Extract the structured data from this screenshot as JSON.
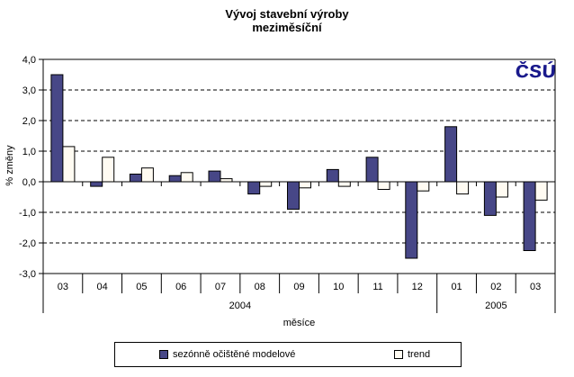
{
  "title": {
    "line1": "Vývoj stavební výroby",
    "line2": "meziměsíční"
  },
  "logo": {
    "text": "ČSÚ",
    "color": "#1a1a8c"
  },
  "chart_data": {
    "type": "bar",
    "title": "Vývoj stavební výroby meziměsíční",
    "xlabel": "měsíce",
    "ylabel": "% změny",
    "ylim": [
      -3.0,
      4.0
    ],
    "ytick_step": 1.0,
    "ytick_labels": [
      "4,0",
      "3,0",
      "2,0",
      "1,0",
      "0,0",
      "-1,0",
      "-2,0",
      "-3,0"
    ],
    "grid": "horizontal-dashed-black",
    "legend_position": "bottom",
    "categories": [
      "03",
      "04",
      "05",
      "06",
      "07",
      "08",
      "09",
      "10",
      "11",
      "12",
      "01",
      "02",
      "03"
    ],
    "year_groups": [
      {
        "label": "2004",
        "months": 10
      },
      {
        "label": "2005",
        "months": 3
      }
    ],
    "series": [
      {
        "name": "sezónně očištěné modelové",
        "color": "#474787",
        "values": [
          3.5,
          -0.15,
          0.25,
          0.2,
          0.35,
          -0.4,
          -0.9,
          0.4,
          0.8,
          -2.5,
          1.8,
          -1.1,
          -2.25
        ]
      },
      {
        "name": "trend",
        "color": "#fffbf2",
        "values": [
          1.15,
          0.8,
          0.45,
          0.3,
          0.1,
          -0.15,
          -0.2,
          -0.15,
          -0.25,
          -0.3,
          -0.4,
          -0.5,
          -0.6
        ]
      }
    ]
  }
}
